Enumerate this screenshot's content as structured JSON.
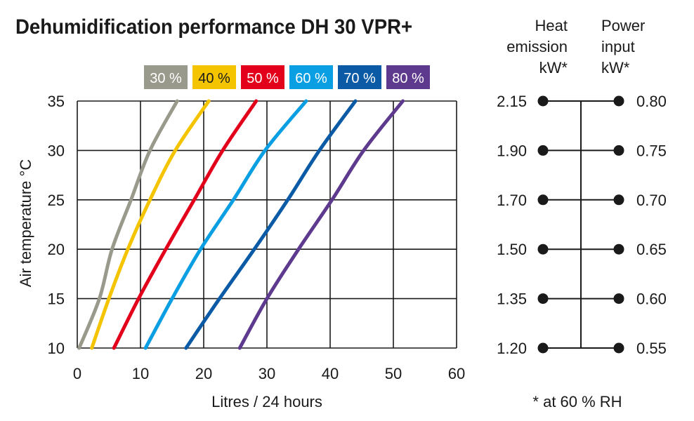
{
  "chart_data": {
    "type": "line",
    "title": "Dehumidification performance DH 30 VPR+",
    "xlabel": "Litres / 24 hours",
    "ylabel": "Air temperature °C",
    "xlim": [
      0,
      60
    ],
    "ylim": [
      10,
      35
    ],
    "x_ticks": [
      "0",
      "10",
      "20",
      "30",
      "40",
      "50",
      "60"
    ],
    "y_ticks": [
      "10",
      "15",
      "20",
      "25",
      "30",
      "35"
    ],
    "grid": true,
    "legend_position": "top",
    "series": [
      {
        "name": "30 %",
        "color": "#9a9a8c",
        "points": [
          [
            0.3,
            10
          ],
          [
            3.5,
            15
          ],
          [
            5.5,
            20
          ],
          [
            8.5,
            25
          ],
          [
            11.5,
            30
          ],
          [
            15.8,
            35
          ]
        ]
      },
      {
        "name": "40 %",
        "color": "#f5c400",
        "points": [
          [
            2.3,
            10
          ],
          [
            5,
            15
          ],
          [
            8,
            20
          ],
          [
            11.5,
            25
          ],
          [
            15.5,
            30
          ],
          [
            20.8,
            35
          ]
        ]
      },
      {
        "name": "50 %",
        "color": "#e2001a",
        "points": [
          [
            5.8,
            10
          ],
          [
            9.7,
            15
          ],
          [
            14,
            20
          ],
          [
            18.5,
            25
          ],
          [
            23,
            30
          ],
          [
            28.3,
            35
          ]
        ]
      },
      {
        "name": "60 %",
        "color": "#0a9ee2",
        "points": [
          [
            10.8,
            10
          ],
          [
            15,
            15
          ],
          [
            19.5,
            20
          ],
          [
            24.7,
            25
          ],
          [
            29.7,
            30
          ],
          [
            36.2,
            35
          ]
        ]
      },
      {
        "name": "70 %",
        "color": "#0a5aa6",
        "points": [
          [
            17.2,
            10
          ],
          [
            22.5,
            15
          ],
          [
            28,
            20
          ],
          [
            33.3,
            25
          ],
          [
            38.3,
            30
          ],
          [
            44,
            35
          ]
        ]
      },
      {
        "name": "80 %",
        "color": "#5e3a8e",
        "points": [
          [
            25.7,
            10
          ],
          [
            30,
            15
          ],
          [
            35,
            20
          ],
          [
            40.3,
            25
          ],
          [
            45.3,
            30
          ],
          [
            51.5,
            35
          ]
        ]
      }
    ],
    "side_scale": {
      "heat_emission_header": [
        "Heat",
        "emission",
        "kW*"
      ],
      "power_input_header": [
        "Power",
        "input",
        "kW*"
      ],
      "temperatures": [
        35,
        30,
        25,
        20,
        15,
        10
      ],
      "heat_emission": [
        "2.15",
        "1.90",
        "1.70",
        "1.50",
        "1.35",
        "1.20"
      ],
      "power_input": [
        "0.80",
        "0.75",
        "0.70",
        "0.65",
        "0.60",
        "0.55"
      ],
      "footnote": "* at 60 % RH"
    }
  }
}
